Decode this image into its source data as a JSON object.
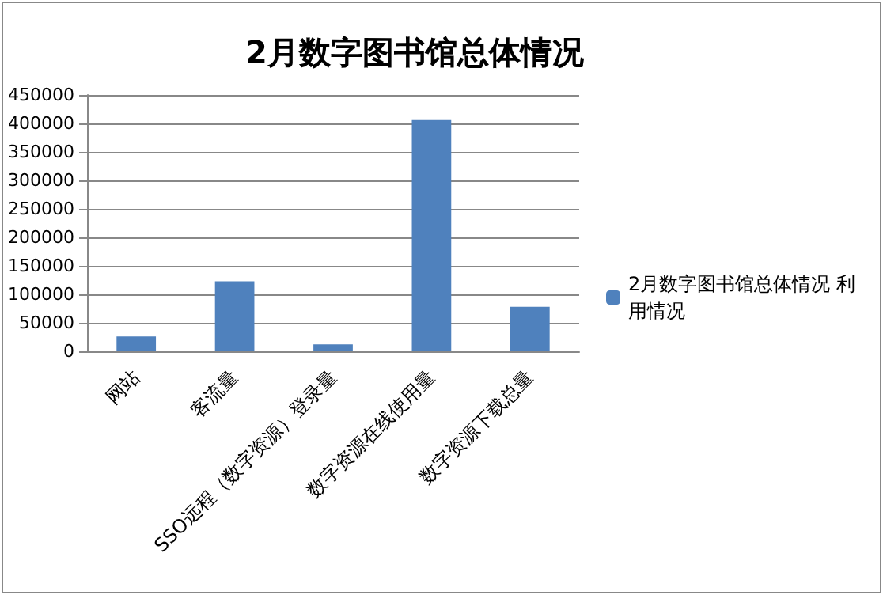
{
  "chart_data": {
    "type": "bar",
    "title": "2月数字图书馆总体情况",
    "categories": [
      "网站",
      "客流量",
      "SSO远程（数字资源）登录量",
      "数字资源在线使用量",
      "数字资源下载总量"
    ],
    "series": [
      {
        "name": "2月数字图书馆总体情况 利用情况",
        "color": "#4f81bd",
        "values": [
          26000,
          123000,
          12000,
          406000,
          78000
        ]
      }
    ],
    "ylim": [
      0,
      450000
    ],
    "yticks": [
      0,
      50000,
      100000,
      150000,
      200000,
      250000,
      300000,
      350000,
      400000,
      450000
    ],
    "grid": "y",
    "legend": "right"
  }
}
